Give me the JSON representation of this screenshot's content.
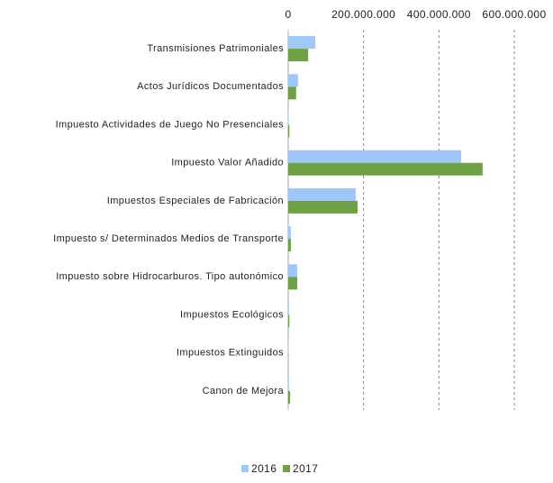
{
  "chart_data": {
    "type": "bar",
    "orientation": "horizontal",
    "categories": [
      "Transmisiones Patrimoniales",
      "Actos Jurídicos Documentados",
      "Impuesto Actividades de Juego No Presenciales",
      "Impuesto Valor Añadido",
      "Impuestos Especiales de Fabricación",
      "Impuesto s/ Determinados Medios de Transporte",
      "Impuesto sobre Hidrocarburos. Tipo autonómico",
      "Impuestos Ecológicos",
      "Impuestos Extinguidos",
      "Canon de Mejora"
    ],
    "series": [
      {
        "name": "2016",
        "color": "#9dc8f7",
        "values": [
          72000000,
          26000000,
          1000000,
          459000000,
          179000000,
          7000000,
          24000000,
          2000000,
          500000,
          2000000
        ]
      },
      {
        "name": "2017",
        "color": "#70a044",
        "values": [
          53000000,
          21000000,
          3000000,
          516000000,
          184000000,
          7000000,
          24000000,
          3000000,
          500000,
          5000000
        ]
      }
    ],
    "xlim": [
      0,
      600000000
    ],
    "xticks": [
      0,
      {
        "value": 200000000,
        "label": "200.000.000"
      },
      {
        "value": 400000000,
        "label": "400.000.000"
      },
      {
        "value": 600000000,
        "label": "600.000.000"
      }
    ],
    "grid": true,
    "legend": "bottom"
  }
}
